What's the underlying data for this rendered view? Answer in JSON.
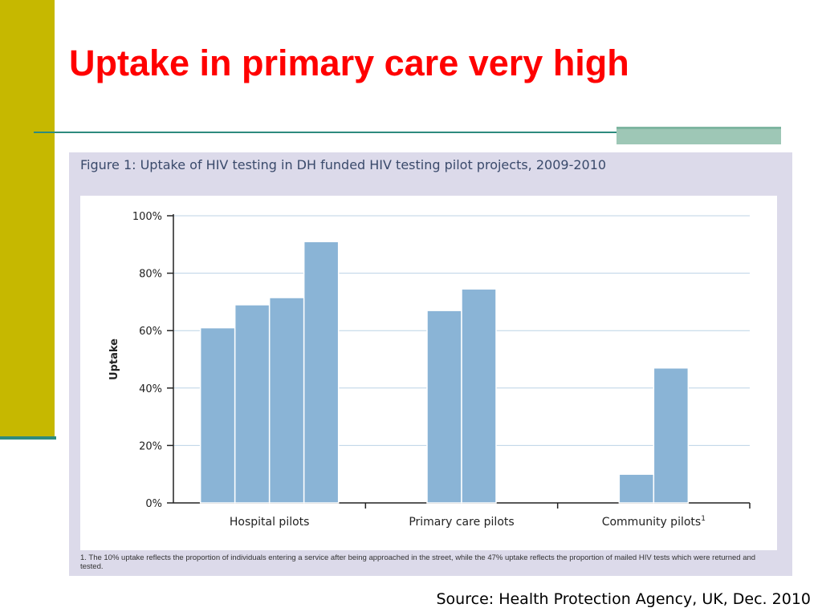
{
  "slide": {
    "title": "Uptake in primary care very high",
    "source": "Source: Health Protection Agency, UK, Dec. 2010",
    "colors": {
      "title": "#ff0000",
      "accent_bar": "#c6b800",
      "rule": "#2e8b7e"
    }
  },
  "chart_data": {
    "type": "bar",
    "title": "Figure 1: Uptake of HIV testing in DH funded HIV testing pilot projects, 2009-2010",
    "ylabel": "Uptake",
    "xlabel": "",
    "ylim": [
      0,
      100
    ],
    "yticks": [
      "0%",
      "20%",
      "40%",
      "60%",
      "80%",
      "100%"
    ],
    "grid": true,
    "bar_color": "#8ab4d6",
    "groups": [
      {
        "label": "Hospital pilots",
        "footnote_mark": "",
        "values": [
          61,
          69,
          71.5,
          91
        ]
      },
      {
        "label": "Primary care pilots",
        "footnote_mark": "",
        "values": [
          67,
          74.5
        ]
      },
      {
        "label": "Community pilots",
        "footnote_mark": "1",
        "values": [
          10,
          47
        ]
      }
    ],
    "footnote": "1. The 10% uptake reflects the proportion of individuals entering a service after being approached in the street, while the 47% uptake reflects the proportion of mailed HIV tests which were returned and tested."
  }
}
